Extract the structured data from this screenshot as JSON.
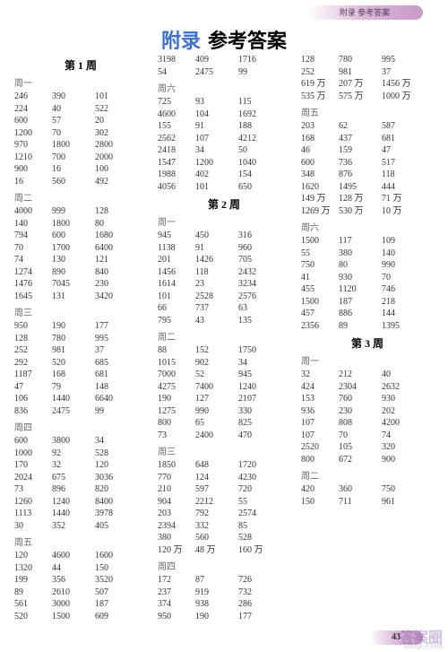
{
  "header_tab": "附录  参考答案",
  "title_blue": "附录",
  "title_black": "参考答案",
  "page_number": "43",
  "watermark_main": "答案圈",
  "watermark_sub": "MXQE.COM",
  "sections": [
    {
      "heading": "第 1 周",
      "days": [
        {
          "label": "周一",
          "rows": [
            [
              "246",
              "390",
              "101"
            ],
            [
              "224",
              "40",
              "522"
            ],
            [
              "600",
              "57",
              "20"
            ],
            [
              "1200",
              "70",
              "302"
            ],
            [
              "970",
              "1800",
              "2800"
            ],
            [
              "1210",
              "700",
              "2000"
            ],
            [
              "900",
              "16",
              "100"
            ],
            [
              "16",
              "560",
              "492"
            ]
          ]
        },
        {
          "label": "周二",
          "rows": [
            [
              "4000",
              "999",
              "128"
            ],
            [
              "140",
              "1800",
              "80"
            ],
            [
              "794",
              "600",
              "1680"
            ],
            [
              "70",
              "1700",
              "6400"
            ],
            [
              "74",
              "130",
              "121"
            ],
            [
              "1274",
              "890",
              "840"
            ],
            [
              "1476",
              "7045",
              "230"
            ],
            [
              "1645",
              "131",
              "3420"
            ]
          ]
        },
        {
          "label": "周三",
          "rows": [
            [
              "950",
              "190",
              "177"
            ],
            [
              "128",
              "780",
              "995"
            ],
            [
              "252",
              "981",
              "37"
            ],
            [
              "292",
              "520",
              "685"
            ],
            [
              "1187",
              "168",
              "681"
            ],
            [
              "47",
              "79",
              "148"
            ],
            [
              "106",
              "1440",
              "6640"
            ],
            [
              "836",
              "2475",
              "99"
            ]
          ]
        },
        {
          "label": "周四",
          "rows": [
            [
              "600",
              "3800",
              "34"
            ],
            [
              "1000",
              "92",
              "528"
            ],
            [
              "170",
              "32",
              "120"
            ],
            [
              "2024",
              "675",
              "3036"
            ],
            [
              "73",
              "896",
              "820"
            ],
            [
              "1260",
              "1240",
              "8400"
            ],
            [
              "1113",
              "1440",
              "3978"
            ],
            [
              "30",
              "352",
              "405"
            ]
          ]
        },
        {
          "label": "周五",
          "rows": [
            [
              "120",
              "4600",
              "1600"
            ],
            [
              "1320",
              "44",
              "150"
            ],
            [
              "199",
              "356",
              "3520"
            ],
            [
              "89",
              "2610",
              "507"
            ],
            [
              "561",
              "3000",
              "187"
            ],
            [
              "520",
              "1500",
              "609"
            ],
            [
              "3198",
              "409",
              "1716"
            ],
            [
              "54",
              "2475",
              "99"
            ]
          ]
        },
        {
          "label": "周六",
          "rows": [
            [
              "725",
              "93",
              "115"
            ],
            [
              "4600",
              "104",
              "1692"
            ],
            [
              "155",
              "91",
              "188"
            ],
            [
              "2562",
              "107",
              "4212"
            ],
            [
              "2418",
              "34",
              "50"
            ],
            [
              "1547",
              "1200",
              "1040"
            ],
            [
              "1988",
              "402",
              "154"
            ],
            [
              "4056",
              "101",
              "650"
            ]
          ]
        }
      ]
    },
    {
      "heading": "第 2 周",
      "days": [
        {
          "label": "周一",
          "rows": [
            [
              "945",
              "450",
              "316"
            ],
            [
              "1138",
              "91",
              "960"
            ],
            [
              "201",
              "1426",
              "705"
            ],
            [
              "1456",
              "118",
              "2432"
            ],
            [
              "1614",
              "23",
              "3234"
            ],
            [
              "101",
              "2528",
              "2576"
            ],
            [
              "66",
              "737",
              "63"
            ],
            [
              "795",
              "43",
              "135"
            ]
          ]
        },
        {
          "label": "周二",
          "rows": [
            [
              "88",
              "152",
              "1750"
            ],
            [
              "1015",
              "902",
              "34"
            ],
            [
              "7000",
              "52",
              "945"
            ],
            [
              "4275",
              "7400",
              "1240"
            ],
            [
              "190",
              "127",
              "2107"
            ],
            [
              "1275",
              "990",
              "330"
            ],
            [
              "800",
              "65",
              "825"
            ],
            [
              "73",
              "2400",
              "470"
            ]
          ]
        },
        {
          "label": "周三",
          "rows": [
            [
              "1850",
              "648",
              "1720"
            ],
            [
              "770",
              "124",
              "4230"
            ],
            [
              "210",
              "597",
              "720"
            ],
            [
              "904",
              "2212",
              "55"
            ],
            [
              "203",
              "792",
              "2574"
            ],
            [
              "2394",
              "332",
              "85"
            ],
            [
              "380",
              "560",
              "528"
            ]
          ]
        },
        {
          "label": "",
          "rows": [
            [
              "120 万",
              "48 万",
              "160 万"
            ]
          ]
        },
        {
          "label": "周四",
          "rows": [
            [
              "172",
              "87",
              "726"
            ],
            [
              "237",
              "919",
              "732"
            ],
            [
              "374",
              "938",
              "286"
            ],
            [
              "950",
              "190",
              "177"
            ],
            [
              "128",
              "780",
              "995"
            ],
            [
              "252",
              "981",
              "37"
            ],
            [
              "619 万",
              "207 万",
              "1456 万"
            ],
            [
              "535 万",
              "575 万",
              "1000 万"
            ]
          ]
        },
        {
          "label": "周五",
          "rows": [
            [
              "203",
              "62",
              "587"
            ],
            [
              "168",
              "437",
              "681"
            ],
            [
              "46",
              "159",
              "47"
            ],
            [
              "600",
              "736",
              "517"
            ],
            [
              "348",
              "876",
              "118"
            ],
            [
              "1620",
              "1495",
              "444"
            ],
            [
              "149 万",
              "128 万",
              "71 万"
            ],
            [
              "1269 万",
              "530 万",
              "10 万"
            ]
          ]
        },
        {
          "label": "周六",
          "rows": [
            [
              "1500",
              "117",
              "109"
            ],
            [
              "55",
              "380",
              "140"
            ],
            [
              "750",
              "80",
              "990"
            ],
            [
              "41",
              "930",
              "70"
            ],
            [
              "455",
              "1120",
              "746"
            ],
            [
              "1500",
              "187",
              "218"
            ],
            [
              "457",
              "886",
              "144"
            ],
            [
              "2356",
              "89",
              "1395"
            ]
          ]
        }
      ]
    },
    {
      "heading": "第 3 周",
      "days": [
        {
          "label": "周一",
          "rows": [
            [
              "32",
              "212",
              "40"
            ],
            [
              "424",
              "2304",
              "2632"
            ],
            [
              "153",
              "760",
              "930"
            ],
            [
              "936",
              "230",
              "202"
            ],
            [
              "107",
              "808",
              "4200"
            ],
            [
              "107",
              "70",
              "74"
            ],
            [
              "2520",
              "105",
              "320"
            ],
            [
              "800",
              "672",
              "900"
            ]
          ]
        },
        {
          "label": "周二",
          "rows": [
            [
              "420",
              "360",
              "750"
            ],
            [
              "150",
              "711",
              "961"
            ]
          ]
        }
      ]
    }
  ]
}
